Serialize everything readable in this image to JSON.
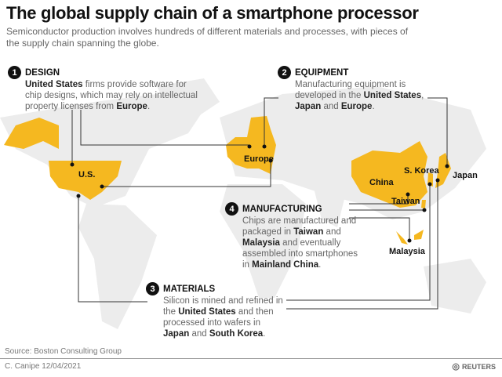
{
  "title": "The global supply chain of a smartphone processor",
  "subtitle": "Semiconductor production involves hundreds of different materials and processes, with pieces of the supply chain spanning the globe.",
  "steps": [
    {
      "num": "1",
      "heading": "DESIGN",
      "parts": [
        "United States",
        " firms provide software for chip designs, which may rely on intellectual property licenses from ",
        "Europe",
        "."
      ]
    },
    {
      "num": "2",
      "heading": "EQUIPMENT",
      "parts": [
        "Manufacturing equipment is developed in the ",
        "United States",
        ", ",
        "Japan",
        " and ",
        "Europe",
        "."
      ]
    },
    {
      "num": "3",
      "heading": "MATERIALS",
      "parts": [
        "Silicon is mined and refined in the ",
        "United States",
        " and then processed into wafers in ",
        "Japan",
        " and ",
        "South Korea",
        "."
      ]
    },
    {
      "num": "4",
      "heading": "MANUFACTURING",
      "parts": [
        "Chips are manufactured and packaged in ",
        "Taiwan",
        " and ",
        "Malaysia",
        " and eventually assembled into smartphones in ",
        "Mainland China",
        "."
      ]
    }
  ],
  "labels": {
    "us": "U.S.",
    "europe": "Europe",
    "china": "China",
    "skorea": "S. Korea",
    "japan": "Japan",
    "taiwan": "Taiwan",
    "malaysia": "Malaysia"
  },
  "source": "Source: Boston Consulting Group",
  "credit": "C. Canipe 12/04/2021",
  "logo": "REUTERS",
  "colors": {
    "highlight": "#f5b820",
    "land": "#ececec",
    "line": "#333333"
  }
}
